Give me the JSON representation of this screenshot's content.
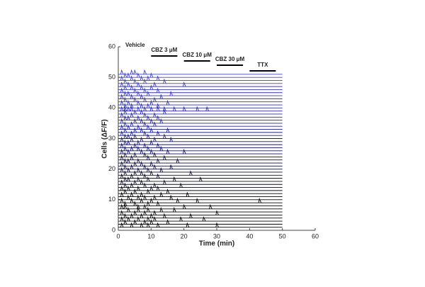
{
  "chart_data": {
    "type": "trace",
    "xlabel": "Time (min)",
    "ylabel": "Cells (ΔF/F)",
    "xlim": [
      0,
      60
    ],
    "xticks": [
      0,
      10,
      20,
      30,
      40,
      50,
      60
    ],
    "ylim": [
      0,
      60
    ],
    "yticks": [
      0,
      10,
      20,
      30,
      40,
      50,
      60
    ],
    "trace_end": 50,
    "spike_height": 1.3,
    "treatments": [
      {
        "label": "Vehicle",
        "start": 0,
        "end": 10,
        "bar": false
      },
      {
        "label": "CBZ 3 μM",
        "start": 10,
        "end": 18,
        "bar": true
      },
      {
        "label": "CBZ 10 μM",
        "start": 20,
        "end": 28,
        "bar": true
      },
      {
        "label": "CBZ 30 μM",
        "start": 30,
        "end": 38,
        "bar": true
      },
      {
        "label": "TTX",
        "start": 40,
        "end": 48,
        "bar": true
      }
    ],
    "series": [
      {
        "offset": 1,
        "color": "#000000",
        "spike_times": [
          1,
          4,
          7,
          9,
          12,
          21,
          30
        ]
      },
      {
        "offset": 2,
        "color": "#000000",
        "spike_times": [
          2,
          5,
          8,
          10,
          15
        ]
      },
      {
        "offset": 3,
        "color": "#000000",
        "spike_times": [
          1,
          3,
          6,
          9,
          11,
          19,
          26
        ]
      },
      {
        "offset": 4,
        "color": "#000000",
        "spike_times": [
          2,
          4,
          7,
          10,
          14,
          22
        ]
      },
      {
        "offset": 5,
        "color": "#000000",
        "spike_times": [
          1,
          5,
          8,
          11,
          30
        ]
      },
      {
        "offset": 6,
        "color": "#000000",
        "spike_times": [
          3,
          6,
          9,
          13,
          17
        ]
      },
      {
        "offset": 7,
        "color": "#000000",
        "spike_times": [
          1,
          2,
          6,
          8,
          20,
          28
        ]
      },
      {
        "offset": 8,
        "color": "#000000",
        "spike_times": [
          2,
          5,
          9,
          12
        ]
      },
      {
        "offset": 9,
        "color": "#000000",
        "spike_times": [
          1,
          4,
          7,
          10,
          18,
          24,
          43
        ]
      },
      {
        "offset": 10,
        "color": "#000000",
        "spike_times": [
          3,
          6,
          8,
          11,
          16
        ]
      },
      {
        "offset": 11,
        "color": "#000000",
        "spike_times": [
          1,
          4,
          7,
          13,
          21
        ]
      },
      {
        "offset": 12,
        "color": "#000000",
        "spike_times": [
          2,
          5,
          9,
          15
        ]
      },
      {
        "offset": 13,
        "color": "#0a0a14",
        "spike_times": [
          1,
          3,
          6,
          10,
          12
        ]
      },
      {
        "offset": 14,
        "color": "#0a0a14",
        "spike_times": [
          2,
          4,
          8,
          11,
          19
        ]
      },
      {
        "offset": 15,
        "color": "#0a0a1e",
        "spike_times": [
          1,
          5,
          7,
          14
        ]
      },
      {
        "offset": 16,
        "color": "#0a0a1e",
        "spike_times": [
          2,
          3,
          6,
          9,
          17,
          25
        ]
      },
      {
        "offset": 17,
        "color": "#0a0a28",
        "spike_times": [
          1,
          4,
          8,
          12
        ]
      },
      {
        "offset": 18,
        "color": "#0a0a28",
        "spike_times": [
          2,
          5,
          7,
          10,
          22
        ]
      },
      {
        "offset": 19,
        "color": "#0a0a32",
        "spike_times": [
          1,
          3,
          6,
          9,
          13
        ]
      },
      {
        "offset": 20,
        "color": "#0a0a32",
        "spike_times": [
          2,
          4,
          8,
          11,
          16
        ]
      },
      {
        "offset": 21,
        "color": "#0a0a3c",
        "spike_times": [
          1,
          5,
          7,
          10
        ]
      },
      {
        "offset": 22,
        "color": "#0a0a3c",
        "spike_times": [
          2,
          3,
          6,
          12,
          18
        ]
      },
      {
        "offset": 23,
        "color": "#0a0a46",
        "spike_times": [
          1,
          4,
          9,
          14
        ]
      },
      {
        "offset": 24,
        "color": "#0a0a50",
        "spike_times": [
          2,
          5,
          8,
          11
        ]
      },
      {
        "offset": 25,
        "color": "#10105a",
        "spike_times": [
          1,
          3,
          7,
          10,
          15,
          20
        ]
      },
      {
        "offset": 26,
        "color": "#101064",
        "spike_times": [
          2,
          4,
          6,
          9,
          13
        ]
      },
      {
        "offset": 27,
        "color": "#10106e",
        "spike_times": [
          1,
          5,
          8,
          12
        ]
      },
      {
        "offset": 28,
        "color": "#141478",
        "spike_times": [
          2,
          3,
          6,
          10
        ]
      },
      {
        "offset": 29,
        "color": "#141482",
        "spike_times": [
          1,
          4,
          7,
          11,
          16
        ]
      },
      {
        "offset": 30,
        "color": "#18188c",
        "spike_times": [
          2,
          3,
          5,
          9,
          14
        ]
      },
      {
        "offset": 31,
        "color": "#181896",
        "spike_times": [
          1,
          4,
          8,
          12
        ]
      },
      {
        "offset": 32,
        "color": "#1c1ca0",
        "spike_times": [
          2,
          5,
          7,
          10,
          15
        ]
      },
      {
        "offset": 33,
        "color": "#1c1ca0",
        "spike_times": [
          1,
          3,
          6,
          9
        ]
      },
      {
        "offset": 34,
        "color": "#2020a8",
        "spike_times": [
          2,
          4,
          8,
          11
        ]
      },
      {
        "offset": 35,
        "color": "#2020a8",
        "spike_times": [
          1,
          5,
          7,
          10,
          13
        ]
      },
      {
        "offset": 36,
        "color": "#2424b0",
        "spike_times": [
          2,
          3,
          6,
          9,
          12
        ]
      },
      {
        "offset": 37,
        "color": "#2424b0",
        "spike_times": [
          1,
          4,
          8,
          11
        ]
      },
      {
        "offset": 38,
        "color": "#2828b4",
        "spike_times": [
          2,
          5,
          7,
          14
        ]
      },
      {
        "offset": 39,
        "color": "#2828b4",
        "spike_times": [
          1,
          2,
          3,
          4,
          6,
          8,
          10,
          12,
          14,
          17,
          20,
          24,
          27
        ]
      },
      {
        "offset": 40,
        "color": "#2c2cb8",
        "spike_times": [
          2,
          4,
          7,
          9,
          12
        ]
      },
      {
        "offset": 41,
        "color": "#2c2cb8",
        "spike_times": [
          1,
          3,
          6,
          10,
          15
        ]
      },
      {
        "offset": 42,
        "color": "#3030bc",
        "spike_times": [
          2,
          5,
          8,
          11
        ]
      },
      {
        "offset": 43,
        "color": "#3030bc",
        "spike_times": [
          1,
          4,
          7,
          13
        ]
      },
      {
        "offset": 44,
        "color": "#3434c0",
        "spike_times": [
          2,
          3,
          6,
          9,
          16
        ]
      },
      {
        "offset": 45,
        "color": "#3434c0",
        "spike_times": [
          1,
          5,
          8,
          12
        ]
      },
      {
        "offset": 46,
        "color": "#3838c4",
        "spike_times": [
          2,
          4,
          7,
          10
        ]
      },
      {
        "offset": 47,
        "color": "#3838c4",
        "spike_times": [
          1,
          3,
          6,
          11,
          20
        ]
      },
      {
        "offset": 48,
        "color": "#3c3cc8",
        "spike_times": [
          2,
          5,
          8,
          14
        ]
      },
      {
        "offset": 49,
        "color": "#3c3cc8",
        "spike_times": [
          1,
          4,
          7,
          9,
          12
        ]
      },
      {
        "offset": 50,
        "color": "#4040cc",
        "spike_times": [
          2,
          3,
          6,
          10
        ]
      },
      {
        "offset": 51,
        "color": "#4040cc",
        "spike_times": [
          1,
          4,
          5,
          8
        ]
      }
    ]
  }
}
